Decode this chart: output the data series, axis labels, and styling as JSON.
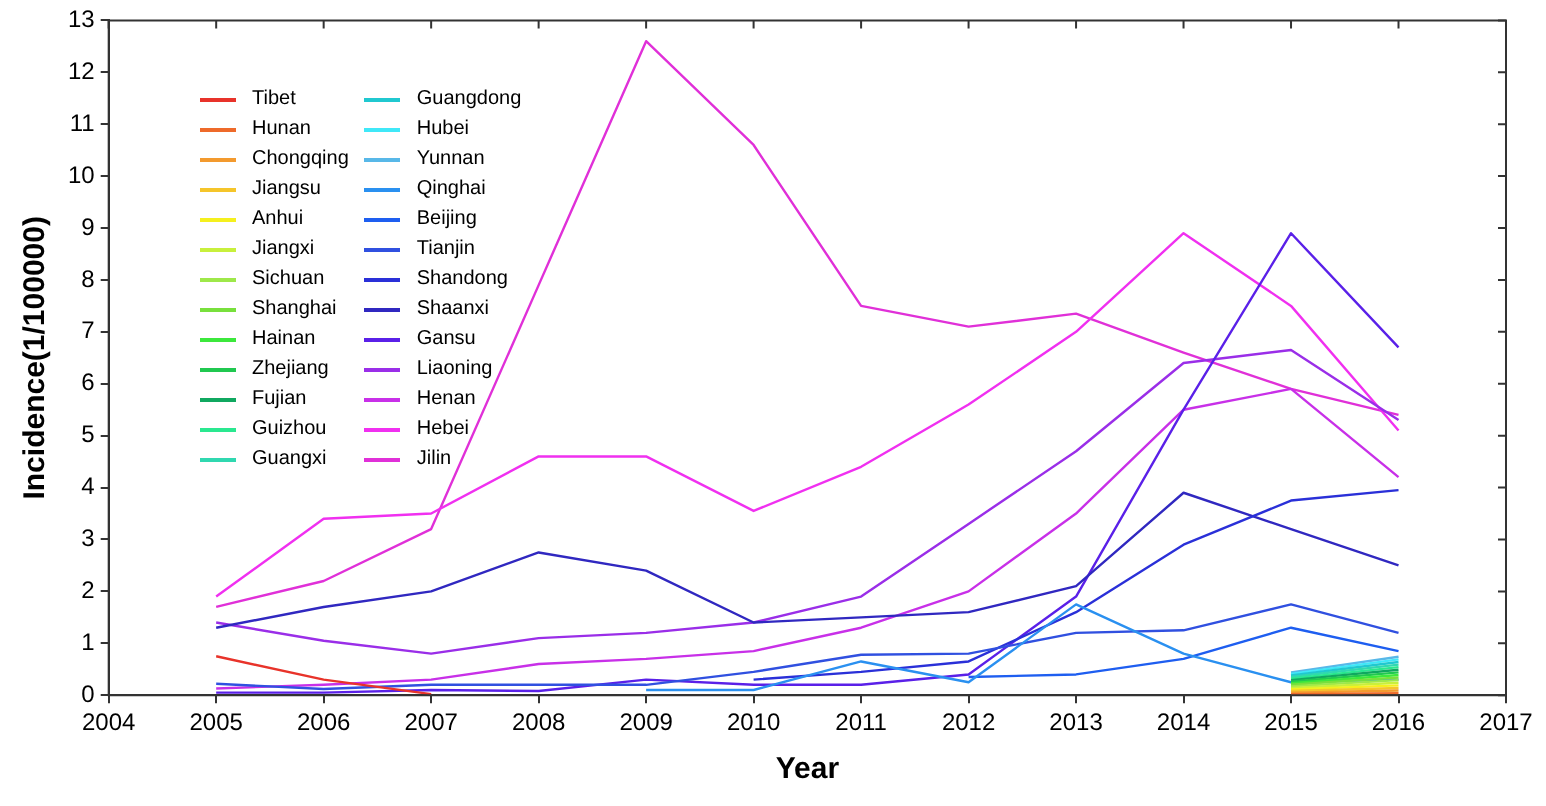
{
  "chart_data": {
    "type": "line",
    "xlabel": "Year",
    "ylabel": "Incidence(1/100000)",
    "x": [
      2005,
      2006,
      2007,
      2008,
      2009,
      2010,
      2011,
      2012,
      2013,
      2014,
      2015,
      2016
    ],
    "xlim": [
      2004,
      2017
    ],
    "xticks": [
      2004,
      2005,
      2006,
      2007,
      2008,
      2009,
      2010,
      2011,
      2012,
      2013,
      2014,
      2015,
      2016,
      2017
    ],
    "ylim": [
      0,
      13
    ],
    "yticks": [
      0,
      1,
      2,
      3,
      4,
      5,
      6,
      7,
      8,
      9,
      10,
      11,
      12,
      13
    ],
    "grid": false,
    "legend": "top left",
    "marker": "none",
    "line_style": "solid",
    "series": [
      {
        "name": "Tibet",
        "color": "#e8332a",
        "values": [
          0.75,
          0.3,
          0.02,
          null,
          null,
          null,
          null,
          null,
          null,
          null,
          null,
          null
        ]
      },
      {
        "name": "Hunan",
        "color": "#ee6a2a",
        "values": [
          null,
          null,
          null,
          null,
          null,
          null,
          null,
          null,
          null,
          null,
          0.02,
          0.04
        ]
      },
      {
        "name": "Chongqing",
        "color": "#f39a2e",
        "values": [
          null,
          null,
          null,
          null,
          null,
          null,
          null,
          null,
          null,
          null,
          0.05,
          0.09
        ]
      },
      {
        "name": "Jiangsu",
        "color": "#f5c52a",
        "values": [
          null,
          null,
          null,
          null,
          null,
          null,
          null,
          null,
          null,
          null,
          0.08,
          0.14
        ]
      },
      {
        "name": "Anhui",
        "color": "#f5f01e",
        "values": [
          null,
          null,
          null,
          null,
          null,
          null,
          null,
          null,
          null,
          null,
          0.11,
          0.19
        ]
      },
      {
        "name": "Jiangxi",
        "color": "#c8f03c",
        "values": [
          null,
          null,
          null,
          null,
          null,
          null,
          null,
          null,
          null,
          null,
          0.14,
          0.24
        ]
      },
      {
        "name": "Sichuan",
        "color": "#9ee84a",
        "values": [
          null,
          null,
          null,
          null,
          null,
          null,
          null,
          null,
          null,
          null,
          0.17,
          0.29
        ]
      },
      {
        "name": "Shanghai",
        "color": "#78e03c",
        "values": [
          null,
          null,
          null,
          null,
          null,
          null,
          null,
          null,
          null,
          null,
          0.2,
          0.34
        ]
      },
      {
        "name": "Hainan",
        "color": "#3ce83c",
        "values": [
          null,
          null,
          null,
          null,
          null,
          null,
          null,
          null,
          null,
          null,
          0.23,
          0.39
        ]
      },
      {
        "name": "Zhejiang",
        "color": "#20c850",
        "values": [
          null,
          null,
          null,
          null,
          null,
          null,
          null,
          null,
          null,
          null,
          0.26,
          0.44
        ]
      },
      {
        "name": "Fujian",
        "color": "#10a860",
        "values": [
          null,
          null,
          null,
          null,
          null,
          null,
          null,
          null,
          null,
          null,
          0.29,
          0.49
        ]
      },
      {
        "name": "Guizhou",
        "color": "#2ae890",
        "values": [
          null,
          null,
          null,
          null,
          null,
          null,
          null,
          null,
          null,
          null,
          0.32,
          0.54
        ]
      },
      {
        "name": "Guangxi",
        "color": "#30d8b0",
        "values": [
          null,
          null,
          null,
          null,
          null,
          null,
          null,
          null,
          null,
          null,
          0.35,
          0.59
        ]
      },
      {
        "name": "Guangdong",
        "color": "#20c8d0",
        "values": [
          null,
          null,
          null,
          null,
          null,
          null,
          null,
          null,
          null,
          null,
          0.38,
          0.64
        ]
      },
      {
        "name": "Hubei",
        "color": "#40e8f8",
        "values": [
          null,
          null,
          null,
          null,
          null,
          null,
          null,
          null,
          null,
          null,
          0.41,
          0.69
        ]
      },
      {
        "name": "Yunnan",
        "color": "#58b8e8",
        "values": [
          null,
          null,
          null,
          null,
          null,
          null,
          null,
          null,
          null,
          null,
          0.44,
          0.74
        ]
      },
      {
        "name": "Qinghai",
        "color": "#2a90f0",
        "values": [
          null,
          null,
          null,
          null,
          0.1,
          0.1,
          0.65,
          0.25,
          1.75,
          0.8,
          0.25,
          0.3
        ]
      },
      {
        "name": "Beijing",
        "color": "#1e5ef0",
        "values": [
          null,
          null,
          null,
          null,
          null,
          null,
          null,
          0.35,
          0.4,
          0.7,
          1.3,
          0.85
        ]
      },
      {
        "name": "Tianjin",
        "color": "#3050e0",
        "values": [
          0.22,
          0.12,
          0.2,
          0.2,
          0.2,
          0.45,
          0.78,
          0.8,
          1.2,
          1.25,
          1.75,
          1.2
        ]
      },
      {
        "name": "Shandong",
        "color": "#2a30d8",
        "values": [
          null,
          null,
          null,
          null,
          null,
          0.3,
          0.45,
          0.65,
          1.6,
          2.9,
          3.75,
          3.95
        ]
      },
      {
        "name": "Shaanxi",
        "color": "#3028c0",
        "values": [
          1.3,
          1.7,
          2.0,
          2.75,
          2.4,
          1.4,
          1.5,
          1.6,
          2.1,
          3.9,
          3.2,
          2.5
        ]
      },
      {
        "name": "Gansu",
        "color": "#5a20e8",
        "values": [
          0.05,
          0.05,
          0.1,
          0.08,
          0.3,
          0.2,
          0.2,
          0.4,
          1.9,
          5.5,
          8.9,
          6.7
        ]
      },
      {
        "name": "Liaoning",
        "color": "#9a2ee8",
        "values": [
          1.4,
          1.05,
          0.8,
          1.1,
          1.2,
          1.4,
          1.9,
          3.3,
          4.7,
          6.4,
          6.65,
          5.3
        ]
      },
      {
        "name": "Henan",
        "color": "#c830e8",
        "values": [
          0.13,
          0.2,
          0.3,
          0.6,
          0.7,
          0.85,
          1.3,
          2.0,
          3.5,
          5.5,
          5.9,
          4.2
        ]
      },
      {
        "name": "Hebei",
        "color": "#f030f0",
        "values": [
          1.9,
          3.4,
          3.5,
          4.6,
          4.6,
          3.55,
          4.4,
          5.6,
          7.0,
          8.9,
          7.5,
          5.1
        ]
      },
      {
        "name": "Jilin",
        "color": "#e030d8",
        "values": [
          1.7,
          2.2,
          3.2,
          7.9,
          12.6,
          10.6,
          7.5,
          7.1,
          7.35,
          6.6,
          5.9,
          5.4
        ]
      }
    ]
  }
}
